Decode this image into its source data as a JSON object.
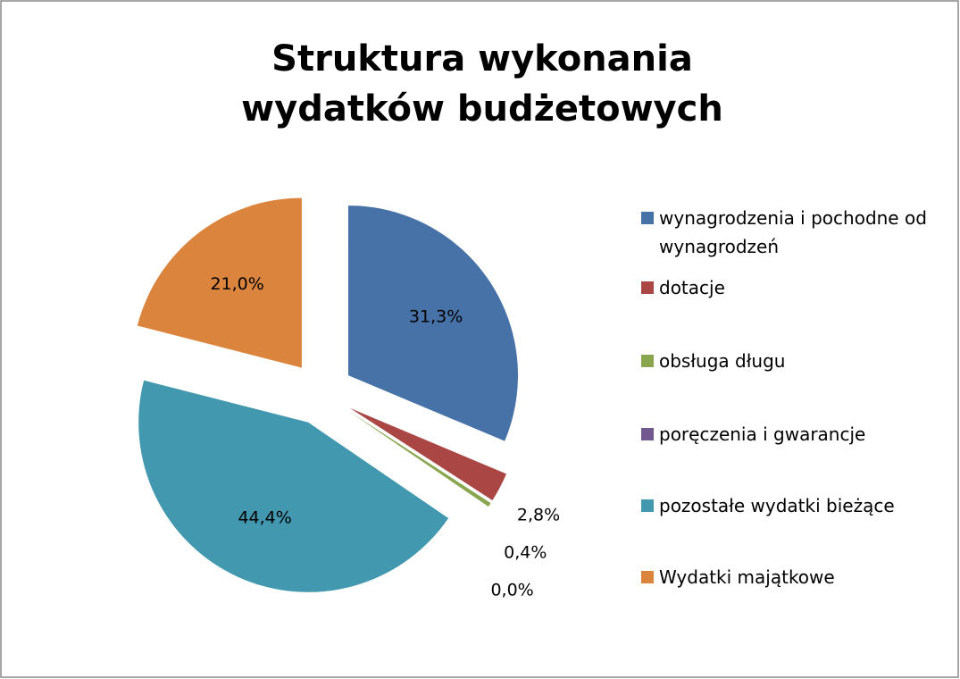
{
  "chart_data": {
    "type": "pie",
    "title": "Struktura wykonania wydatków budżetowych",
    "categories": [
      "wynagrodzenia i pochodne od wynagrodzeń",
      "dotacje",
      "obsługa długu",
      "poręczenia i gwarancje",
      "pozostałe wydatki bieżące",
      "Wydatki majątkowe"
    ],
    "values": [
      31.3,
      2.8,
      0.4,
      0.0,
      44.4,
      21.0
    ],
    "value_labels": [
      "31,3%",
      "2,8%",
      "0,4%",
      "0,0%",
      "44,4%",
      "21,0%"
    ],
    "colors": [
      "#4672a8",
      "#aa4643",
      "#89a54e",
      "#71588f",
      "#4198af",
      "#db843d"
    ],
    "legend": "right"
  }
}
